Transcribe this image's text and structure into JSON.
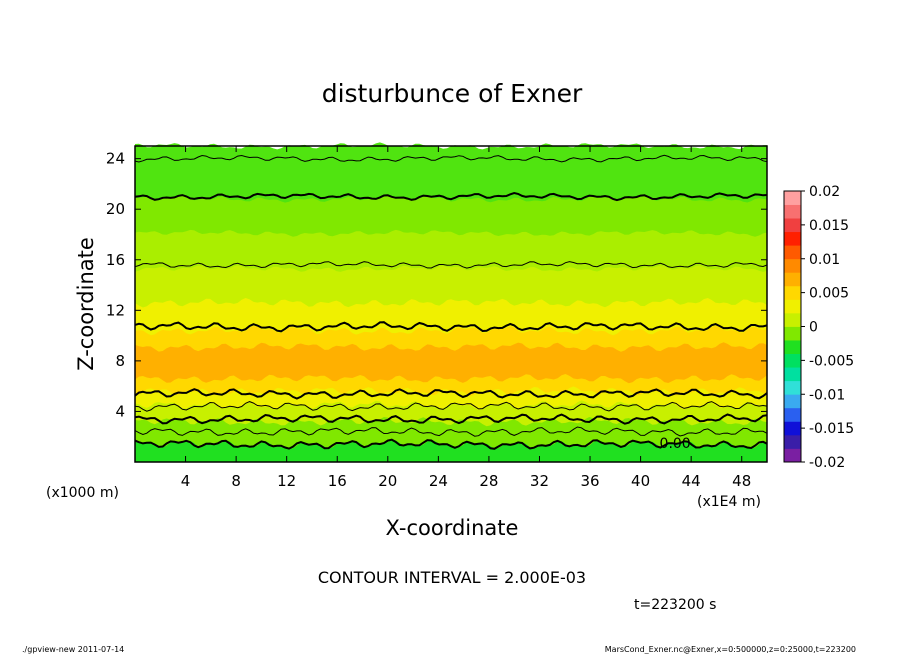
{
  "chart_data": {
    "type": "heatmap",
    "title": "disturbunce of Exner",
    "xlabel": "X-coordinate",
    "ylabel": "Z-coordinate",
    "x_unit": "(x1E4 m)",
    "y_unit": "(x1000 m)",
    "x_ticks": [
      4,
      8,
      12,
      16,
      20,
      24,
      28,
      32,
      36,
      40,
      44,
      48
    ],
    "y_ticks": [
      4,
      8,
      12,
      16,
      20,
      24
    ],
    "xlim": [
      0,
      50
    ],
    "ylim": [
      0,
      25
    ],
    "colorbar": {
      "ticks": [
        "0.02",
        "0.015",
        "0.01",
        "0.005",
        "0",
        "-0.005",
        "-0.01",
        "-0.015",
        "-0.02"
      ],
      "range": [
        -0.02,
        0.02
      ],
      "colors": [
        "#7a1fa2",
        "#3a1ea8",
        "#1010d8",
        "#2a60f0",
        "#3aaaf0",
        "#30e0d8",
        "#00e0a0",
        "#00e060",
        "#20e020",
        "#80e800",
        "#c8f000",
        "#f0f000",
        "#ffd800",
        "#ffb000",
        "#ff8a00",
        "#ff5a00",
        "#ff2000",
        "#f04040",
        "#f87070",
        "#ffa0a0"
      ]
    },
    "bands": [
      {
        "z0": 0.0,
        "z1": 1.4,
        "color": "#20e020"
      },
      {
        "z0": 1.4,
        "z1": 3.2,
        "color": "#80e800"
      },
      {
        "z0": 3.2,
        "z1": 4.5,
        "color": "#c8f000"
      },
      {
        "z0": 4.5,
        "z1": 5.6,
        "color": "#f0f000"
      },
      {
        "z0": 5.6,
        "z1": 6.6,
        "color": "#ffd800"
      },
      {
        "z0": 6.6,
        "z1": 9.1,
        "color": "#ffb000"
      },
      {
        "z0": 9.1,
        "z1": 10.4,
        "color": "#ffd800"
      },
      {
        "z0": 10.4,
        "z1": 12.6,
        "color": "#f0f000"
      },
      {
        "z0": 12.6,
        "z1": 15.3,
        "color": "#c8f000"
      },
      {
        "z0": 15.3,
        "z1": 18.1,
        "color": "#aaee00"
      },
      {
        "z0": 18.1,
        "z1": 20.8,
        "color": "#80e800"
      },
      {
        "z0": 20.8,
        "z1": 25.0,
        "color": "#50e410"
      }
    ],
    "contours": [
      {
        "z": 1.4,
        "thick": true
      },
      {
        "z": 2.4,
        "thick": false
      },
      {
        "z": 3.4,
        "thick": true
      },
      {
        "z": 4.4,
        "thick": false
      },
      {
        "z": 5.4,
        "thick": true
      },
      {
        "z": 10.7,
        "thick": true
      },
      {
        "z": 15.6,
        "thick": false
      },
      {
        "z": 21.0,
        "thick": true
      },
      {
        "z": 24.0,
        "thick": false
      }
    ],
    "contour_label": "0.00",
    "contour_label_x": 41.5,
    "contour_label_z": 1.5,
    "annotation": "CONTOUR INTERVAL = 2.000E-03",
    "time_label": "t=223200 s"
  },
  "footer": {
    "left": "./gpview-new  2011-07-14",
    "right": "MarsCond_Exner.nc@Exner,x=0:500000,z=0:25000,t=223200"
  }
}
